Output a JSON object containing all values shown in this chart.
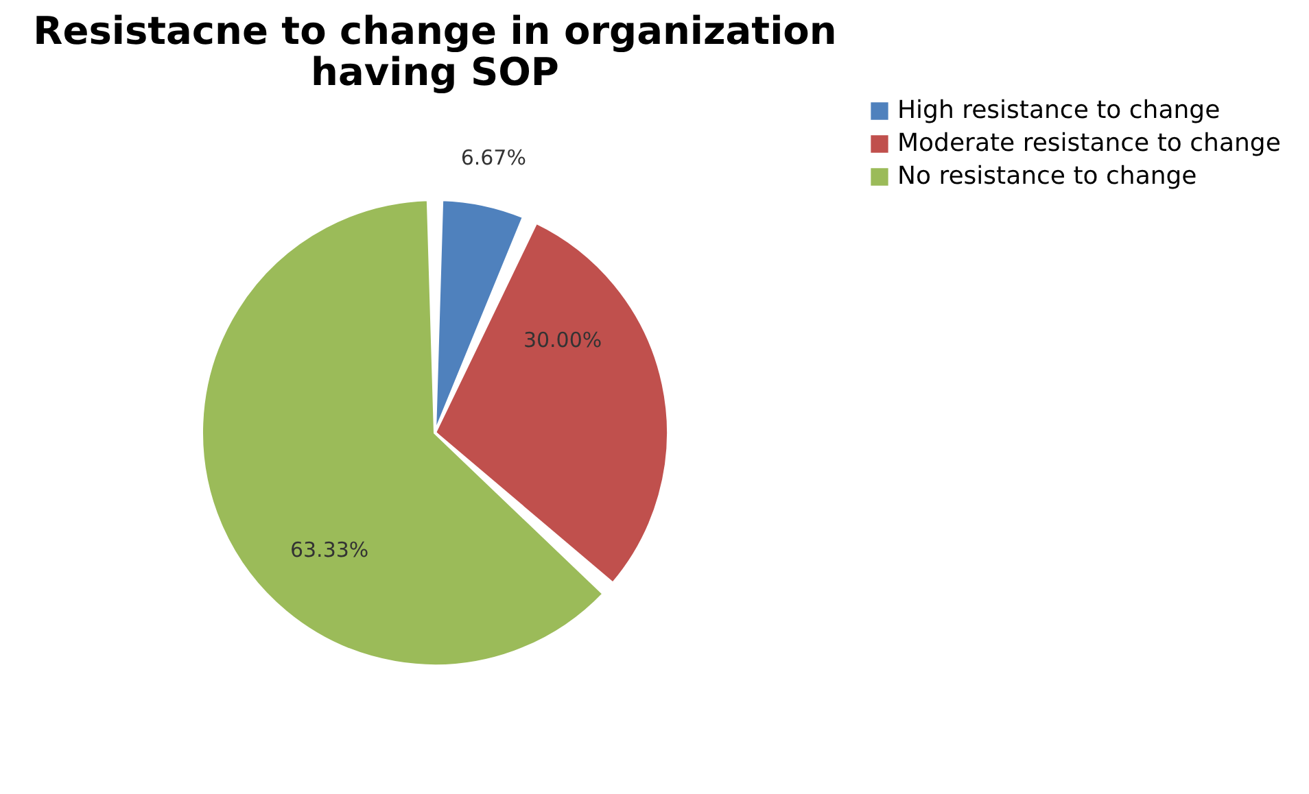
{
  "chart_data": {
    "type": "pie",
    "title": "Resistacne to change in organization having SOP",
    "categories": [
      "High resistance to change",
      "Moderate resistance to change",
      "No resistance to change"
    ],
    "values": [
      6.67,
      30.0,
      63.33
    ],
    "colors": [
      "#4f81bd",
      "#c0504d",
      "#9bbb59"
    ],
    "value_labels": [
      "6.67%",
      "30.00%",
      "63.33%"
    ],
    "legend": "right"
  }
}
